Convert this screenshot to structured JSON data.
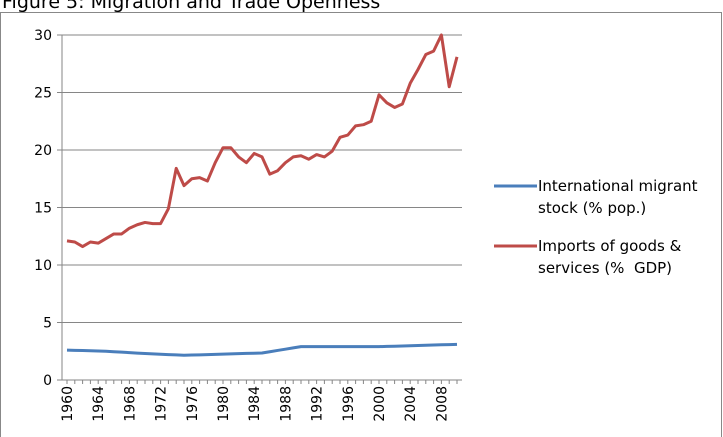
{
  "chart_data": {
    "type": "line",
    "title": "Figure 5: Migration and Trade Openness",
    "categories": [
      "1960",
      null,
      null,
      null,
      "1964",
      null,
      null,
      null,
      "1968",
      null,
      null,
      null,
      "1972",
      null,
      null,
      null,
      "1976",
      null,
      null,
      null,
      "1980",
      null,
      null,
      null,
      "1984",
      null,
      null,
      null,
      "1988",
      null,
      null,
      null,
      "1992",
      null,
      null,
      null,
      "1996",
      null,
      null,
      null,
      "2000",
      null,
      null,
      null,
      "2004",
      null,
      null,
      null,
      "2008",
      null,
      null
    ],
    "series": [
      {
        "name": "International migrant stock (% pop.)",
        "color": "#4a7ebb",
        "values": [
          2.6,
          2.58,
          2.56,
          2.54,
          2.52,
          2.5,
          2.46,
          2.42,
          2.38,
          2.34,
          2.3,
          2.27,
          2.24,
          2.21,
          2.18,
          2.15,
          2.17,
          2.19,
          2.21,
          2.23,
          2.25,
          2.27,
          2.29,
          2.31,
          2.33,
          2.35,
          2.46,
          2.57,
          2.68,
          2.79,
          2.9,
          2.9,
          2.9,
          2.9,
          2.9,
          2.9,
          2.9,
          2.9,
          2.9,
          2.9,
          2.9,
          2.92,
          2.94,
          2.96,
          2.98,
          3.0,
          3.02,
          3.04,
          3.06,
          3.08,
          3.1
        ]
      },
      {
        "name": "Imports of goods & services (%  GDP)",
        "color": "#be4b48",
        "values": [
          12.1,
          12.0,
          11.6,
          12.0,
          11.9,
          12.3,
          12.7,
          12.7,
          13.2,
          13.5,
          13.7,
          13.6,
          13.6,
          14.9,
          18.4,
          16.9,
          17.5,
          17.6,
          17.3,
          18.9,
          20.2,
          20.2,
          19.4,
          18.9,
          19.7,
          19.4,
          17.9,
          18.2,
          18.9,
          19.4,
          19.5,
          19.2,
          19.6,
          19.4,
          19.9,
          21.1,
          21.3,
          22.1,
          22.2,
          22.5,
          24.8,
          24.1,
          23.7,
          24.0,
          25.8,
          27.0,
          28.3,
          28.6,
          30.0,
          25.5,
          28.1
        ]
      }
    ],
    "ylim": [
      0,
      30
    ],
    "yticks": [
      0,
      5,
      10,
      15,
      20,
      25,
      30
    ],
    "grid": true,
    "legend": "right"
  }
}
